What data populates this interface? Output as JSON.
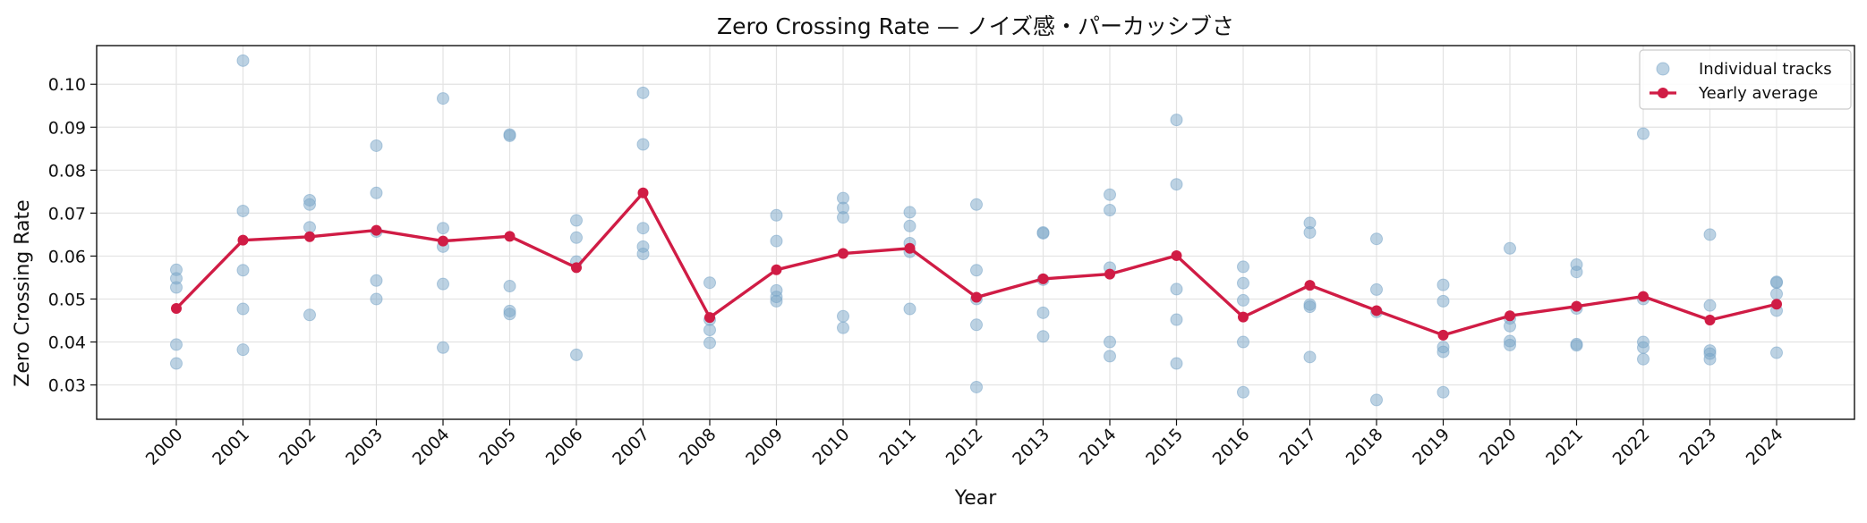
{
  "chart_data": {
    "type": "line",
    "title": "Zero Crossing Rate — ノイズ感・パーカッシブさ",
    "xlabel": "Year",
    "ylabel": "Zero Crossing Rate",
    "ylim": [
      0.022,
      0.109
    ],
    "yticks": [
      "0.03",
      "0.04",
      "0.05",
      "0.06",
      "0.07",
      "0.08",
      "0.09",
      "0.10"
    ],
    "grid": true,
    "legend_position": "top-right",
    "x": [
      2000,
      2001,
      2002,
      2003,
      2004,
      2005,
      2006,
      2007,
      2008,
      2009,
      2010,
      2011,
      2012,
      2013,
      2014,
      2015,
      2016,
      2017,
      2018,
      2019,
      2020,
      2021,
      2022,
      2023,
      2024
    ],
    "series": [
      {
        "name": "Individual tracks",
        "kind": "scatter",
        "color": "#7aa6c8",
        "points": [
          [
            2000,
            0.0568
          ],
          [
            2000,
            0.0548
          ],
          [
            2000,
            0.0527
          ],
          [
            2000,
            0.0394
          ],
          [
            2000,
            0.035
          ],
          [
            2001,
            0.1055
          ],
          [
            2001,
            0.0705
          ],
          [
            2001,
            0.0567
          ],
          [
            2001,
            0.0477
          ],
          [
            2001,
            0.0382
          ],
          [
            2002,
            0.073
          ],
          [
            2002,
            0.072
          ],
          [
            2002,
            0.0667
          ],
          [
            2002,
            0.0463
          ],
          [
            2003,
            0.0857
          ],
          [
            2003,
            0.0747
          ],
          [
            2003,
            0.0657
          ],
          [
            2003,
            0.0543
          ],
          [
            2003,
            0.05
          ],
          [
            2004,
            0.0967
          ],
          [
            2004,
            0.0665
          ],
          [
            2004,
            0.0622
          ],
          [
            2004,
            0.0535
          ],
          [
            2004,
            0.0387
          ],
          [
            2005,
            0.0883
          ],
          [
            2005,
            0.088
          ],
          [
            2005,
            0.053
          ],
          [
            2005,
            0.0472
          ],
          [
            2005,
            0.0465
          ],
          [
            2006,
            0.0683
          ],
          [
            2006,
            0.0643
          ],
          [
            2006,
            0.0587
          ],
          [
            2006,
            0.037
          ],
          [
            2007,
            0.098
          ],
          [
            2007,
            0.086
          ],
          [
            2007,
            0.0665
          ],
          [
            2007,
            0.0622
          ],
          [
            2007,
            0.0605
          ],
          [
            2008,
            0.0538
          ],
          [
            2008,
            0.0452
          ],
          [
            2008,
            0.0428
          ],
          [
            2008,
            0.0398
          ],
          [
            2009,
            0.0695
          ],
          [
            2009,
            0.0635
          ],
          [
            2009,
            0.052
          ],
          [
            2009,
            0.0505
          ],
          [
            2009,
            0.0495
          ],
          [
            2010,
            0.0735
          ],
          [
            2010,
            0.0712
          ],
          [
            2010,
            0.069
          ],
          [
            2010,
            0.046
          ],
          [
            2010,
            0.0433
          ],
          [
            2011,
            0.0702
          ],
          [
            2011,
            0.067
          ],
          [
            2011,
            0.063
          ],
          [
            2011,
            0.061
          ],
          [
            2011,
            0.0477
          ],
          [
            2012,
            0.072
          ],
          [
            2012,
            0.0567
          ],
          [
            2012,
            0.05
          ],
          [
            2012,
            0.044
          ],
          [
            2012,
            0.0295
          ],
          [
            2013,
            0.0655
          ],
          [
            2013,
            0.0653
          ],
          [
            2013,
            0.0545
          ],
          [
            2013,
            0.0468
          ],
          [
            2013,
            0.0413
          ],
          [
            2014,
            0.0743
          ],
          [
            2014,
            0.0707
          ],
          [
            2014,
            0.0573
          ],
          [
            2014,
            0.04
          ],
          [
            2014,
            0.0367
          ],
          [
            2015,
            0.0917
          ],
          [
            2015,
            0.0767
          ],
          [
            2015,
            0.0523
          ],
          [
            2015,
            0.0452
          ],
          [
            2015,
            0.035
          ],
          [
            2016,
            0.0575
          ],
          [
            2016,
            0.0537
          ],
          [
            2016,
            0.0497
          ],
          [
            2016,
            0.04
          ],
          [
            2016,
            0.0283
          ],
          [
            2017,
            0.0677
          ],
          [
            2017,
            0.0655
          ],
          [
            2017,
            0.0487
          ],
          [
            2017,
            0.0482
          ],
          [
            2017,
            0.0365
          ],
          [
            2018,
            0.064
          ],
          [
            2018,
            0.0522
          ],
          [
            2018,
            0.047
          ],
          [
            2018,
            0.0265
          ],
          [
            2019,
            0.0533
          ],
          [
            2019,
            0.0495
          ],
          [
            2019,
            0.0388
          ],
          [
            2019,
            0.0377
          ],
          [
            2019,
            0.0283
          ],
          [
            2020,
            0.0618
          ],
          [
            2020,
            0.0455
          ],
          [
            2020,
            0.0437
          ],
          [
            2020,
            0.0402
          ],
          [
            2020,
            0.0393
          ],
          [
            2021,
            0.058
          ],
          [
            2021,
            0.0563
          ],
          [
            2021,
            0.0478
          ],
          [
            2021,
            0.0395
          ],
          [
            2021,
            0.0392
          ],
          [
            2022,
            0.0885
          ],
          [
            2022,
            0.05
          ],
          [
            2022,
            0.04
          ],
          [
            2022,
            0.0387
          ],
          [
            2022,
            0.036
          ],
          [
            2023,
            0.065
          ],
          [
            2023,
            0.0485
          ],
          [
            2023,
            0.038
          ],
          [
            2023,
            0.0373
          ],
          [
            2023,
            0.036
          ],
          [
            2024,
            0.054
          ],
          [
            2024,
            0.0538
          ],
          [
            2024,
            0.0512
          ],
          [
            2024,
            0.0473
          ],
          [
            2024,
            0.0375
          ]
        ]
      },
      {
        "name": "Yearly average",
        "kind": "line",
        "color": "#d01c45",
        "values": [
          0.0478,
          0.0637,
          0.0645,
          0.066,
          0.0635,
          0.0646,
          0.0573,
          0.0747,
          0.0457,
          0.0568,
          0.0606,
          0.0618,
          0.0504,
          0.0547,
          0.0558,
          0.0601,
          0.0458,
          0.0532,
          0.0473,
          0.0416,
          0.0461,
          0.0483,
          0.0506,
          0.0451,
          0.0488
        ]
      }
    ]
  }
}
